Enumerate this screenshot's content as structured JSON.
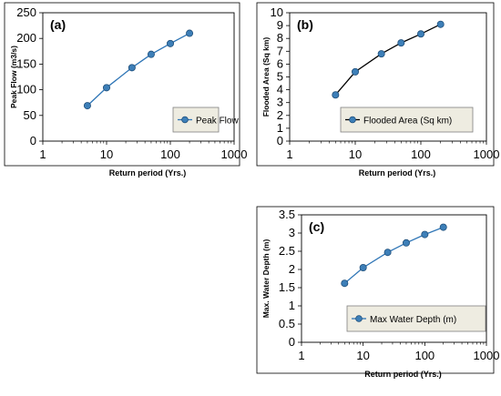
{
  "chart_data": [
    {
      "type": "line",
      "panel_label": "(a)",
      "xlabel": "Return period (Yrs.)",
      "ylabel": "Peak Flow  (m3/s)",
      "x_scale": "log",
      "xlim": [
        1,
        1000
      ],
      "x_ticks": [
        1,
        10,
        100,
        1000
      ],
      "x_tick_labels": [
        "1",
        "10",
        "100",
        "1000"
      ],
      "ylim": [
        0,
        250
      ],
      "y_ticks": [
        0,
        50,
        100,
        150,
        200,
        250
      ],
      "y_tick_labels": [
        "0",
        "50",
        "100",
        "150",
        "200",
        "250"
      ],
      "legend_position": "lower-right",
      "line_color": "#2e75b6",
      "marker_color": "#3d7fb8",
      "series": [
        {
          "name": "Peak Flow",
          "x": [
            5,
            10,
            25,
            50,
            100,
            200
          ],
          "values": [
            69,
            104,
            143,
            169,
            190,
            210
          ]
        }
      ]
    },
    {
      "type": "line",
      "panel_label": "(b)",
      "xlabel": "Return period (Yrs.)",
      "ylabel": "Flooded Area (Sq km)",
      "x_scale": "log",
      "xlim": [
        1,
        1000
      ],
      "x_ticks": [
        1,
        10,
        100,
        1000
      ],
      "x_tick_labels": [
        "1",
        "10",
        "100",
        "1000"
      ],
      "ylim": [
        0,
        10
      ],
      "y_ticks": [
        0,
        1,
        2,
        3,
        4,
        5,
        6,
        7,
        8,
        9,
        10
      ],
      "y_tick_labels": [
        "0",
        "1",
        "2",
        "3",
        "4",
        "5",
        "6",
        "7",
        "8",
        "9",
        "10"
      ],
      "legend_position": "lower-right",
      "line_color": "#000000",
      "marker_color": "#3d7fb8",
      "series": [
        {
          "name": "Flooded Area (Sq km)",
          "x": [
            5,
            10,
            25,
            50,
            100,
            200
          ],
          "values": [
            3.6,
            5.4,
            6.8,
            7.65,
            8.35,
            9.1
          ]
        }
      ]
    },
    {
      "type": "line",
      "panel_label": "(c)",
      "xlabel": "Return period (Yrs.)",
      "ylabel": "Max. Water Depth  (m)",
      "x_scale": "log",
      "xlim": [
        1,
        1000
      ],
      "x_ticks": [
        1,
        10,
        100,
        1000
      ],
      "x_tick_labels": [
        "1",
        "10",
        "100",
        "1000"
      ],
      "ylim": [
        0,
        3.5
      ],
      "y_ticks": [
        0,
        0.5,
        1,
        1.5,
        2,
        2.5,
        3,
        3.5
      ],
      "y_tick_labels": [
        "0",
        "0.5",
        "1",
        "1.5",
        "2",
        "2.5",
        "3",
        "3.5"
      ],
      "legend_position": "lower-right",
      "line_color": "#2e75b6",
      "marker_color": "#3d7fb8",
      "series": [
        {
          "name": "Max Water Depth (m)",
          "x": [
            5,
            10,
            25,
            50,
            100,
            200
          ],
          "values": [
            1.62,
            2.05,
            2.47,
            2.73,
            2.96,
            3.16
          ]
        }
      ]
    }
  ]
}
